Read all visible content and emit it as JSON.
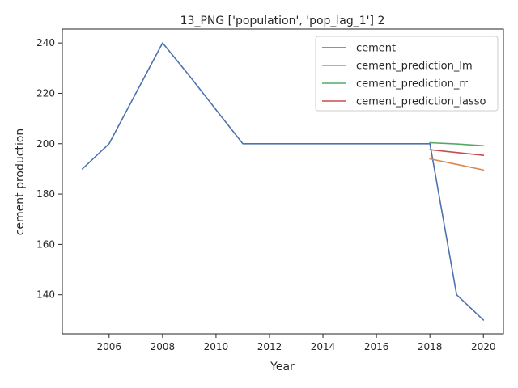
{
  "chart_data": {
    "type": "line",
    "title": "13_PNG ['population', 'pop_lag_1'] 2",
    "xlabel": "Year",
    "ylabel": "cement production",
    "xlim": [
      2004.25,
      2020.75
    ],
    "ylim": [
      124.5,
      245.5
    ],
    "xticks": [
      2006,
      2008,
      2010,
      2012,
      2014,
      2016,
      2018,
      2020
    ],
    "yticks": [
      140,
      160,
      180,
      200,
      220,
      240
    ],
    "grid": false,
    "legend_position": "top-right",
    "series": [
      {
        "name": "cement",
        "color": "#4c72b0",
        "x": [
          2005,
          2006,
          2007,
          2008,
          2009,
          2010,
          2011,
          2012,
          2013,
          2014,
          2015,
          2016,
          2017,
          2018,
          2019,
          2020
        ],
        "y": [
          190,
          200,
          220,
          240,
          227,
          213.5,
          200,
          200,
          200,
          200,
          200,
          200,
          200,
          200,
          140,
          130
        ]
      },
      {
        "name": "cement_prediction_lm",
        "color": "#dd8452",
        "x": [
          2018,
          2019,
          2020
        ],
        "y": [
          194,
          191.8,
          189.6
        ]
      },
      {
        "name": "cement_prediction_rr",
        "color": "#55a868",
        "x": [
          2018,
          2019,
          2020
        ],
        "y": [
          200.4,
          199.9,
          199.2
        ]
      },
      {
        "name": "cement_prediction_lasso",
        "color": "#c44e52",
        "x": [
          2018,
          2019,
          2020
        ],
        "y": [
          197.6,
          196.5,
          195.4
        ]
      }
    ]
  }
}
